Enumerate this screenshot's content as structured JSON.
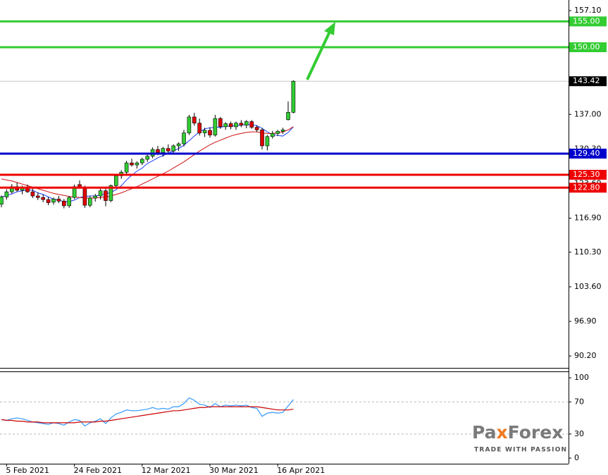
{
  "chart_data": [
    {
      "type": "candlestick",
      "categories": [
        null,
        "5 Feb 2021",
        null,
        null,
        null,
        null,
        null,
        null,
        null,
        null,
        null,
        null,
        null,
        null,
        "24 Feb 2021",
        null,
        null,
        null,
        null,
        null,
        null,
        null,
        null,
        null,
        null,
        null,
        null,
        "12 Mar 2021",
        null,
        null,
        null,
        null,
        null,
        null,
        null,
        null,
        null,
        null,
        null,
        null,
        "30 Mar 2021",
        null,
        null,
        null,
        null,
        null,
        null,
        null,
        null,
        null,
        null,
        null,
        null,
        "16 Apr 2021",
        null,
        null,
        null
      ],
      "open": [
        119.6,
        121.0,
        122.0,
        123.0,
        122.3,
        122.8,
        122.0,
        121.2,
        120.9,
        120.5,
        120.0,
        120.6,
        120.2,
        119.3,
        120.9,
        123.4,
        122.7,
        119.4,
        120.8,
        121.2,
        122.2,
        120.3,
        123.2,
        125.1,
        125.8,
        127.6,
        127.2,
        127.6,
        128.3,
        128.9,
        130.2,
        129.6,
        130.4,
        129.9,
        130.9,
        131.3,
        133.4,
        136.5,
        135.3,
        133.4,
        133.9,
        133.0,
        136.2,
        134.6,
        135.2,
        134.6,
        135.3,
        134.9,
        135.6,
        134.5,
        134.0,
        130.9,
        132.7,
        133.3,
        133.7,
        136.0,
        137.4
      ],
      "high": [
        121.3,
        122.5,
        123.5,
        123.8,
        123.2,
        123.4,
        122.6,
        121.9,
        121.5,
        121.0,
        120.9,
        121.2,
        120.6,
        121.2,
        123.4,
        124.2,
        123.2,
        121.2,
        121.6,
        122.6,
        123.0,
        123.4,
        125.5,
        126.2,
        128.0,
        128.4,
        127.9,
        128.6,
        129.2,
        130.6,
        130.9,
        130.7,
        131.2,
        131.2,
        131.6,
        134.0,
        136.9,
        137.3,
        136.2,
        134.4,
        134.5,
        136.9,
        136.5,
        135.5,
        135.6,
        135.6,
        135.9,
        135.9,
        135.9,
        134.9,
        134.3,
        133.0,
        133.8,
        134.0,
        134.4,
        139.5,
        143.6
      ],
      "low": [
        119.0,
        120.5,
        121.6,
        122.0,
        121.5,
        121.8,
        120.8,
        120.4,
        120.0,
        119.4,
        119.5,
        119.8,
        118.8,
        118.9,
        120.6,
        122.6,
        118.9,
        119.0,
        120.1,
        120.5,
        119.2,
        120.0,
        122.8,
        124.5,
        125.4,
        126.9,
        126.5,
        127.2,
        127.8,
        128.5,
        129.1,
        128.8,
        129.5,
        129.6,
        129.9,
        130.8,
        133.0,
        134.8,
        132.9,
        132.6,
        132.5,
        132.7,
        134.2,
        134.0,
        134.1,
        134.0,
        134.5,
        134.3,
        134.2,
        133.6,
        130.2,
        130.0,
        132.3,
        132.8,
        133.2,
        135.8,
        137.2
      ],
      "close": [
        121.0,
        122.0,
        123.0,
        122.3,
        122.8,
        122.0,
        121.2,
        120.9,
        120.5,
        119.9,
        120.6,
        120.2,
        119.3,
        120.9,
        123.0,
        122.7,
        119.4,
        120.8,
        121.2,
        122.2,
        120.3,
        123.2,
        125.1,
        125.8,
        127.6,
        127.2,
        127.6,
        128.3,
        128.9,
        130.2,
        129.6,
        130.4,
        129.9,
        130.9,
        131.3,
        133.4,
        136.5,
        135.3,
        133.4,
        133.9,
        133.0,
        136.2,
        134.6,
        135.2,
        134.6,
        135.3,
        134.9,
        135.6,
        134.5,
        134.0,
        130.9,
        132.7,
        133.3,
        133.7,
        134.0,
        137.4,
        143.42
      ],
      "up_color": "#33cc33",
      "down_color": "#e00000",
      "series": [
        {
          "color": "#1f3fff",
          "values": [
            121.0,
            121.3,
            121.6,
            122.0,
            122.2,
            122.4,
            122.3,
            121.8,
            121.5,
            121.0,
            120.6,
            120.4,
            120.1,
            120.1,
            120.4,
            120.9,
            121.1,
            121.2,
            121.2,
            121.4,
            121.6,
            121.9,
            122.4,
            123.2,
            124.3,
            125.2,
            126.0,
            126.6,
            127.5,
            128.0,
            128.6,
            129.0,
            129.5,
            129.9,
            130.4,
            131.0,
            131.9,
            132.8,
            133.6,
            134.2,
            134.4,
            134.5,
            134.5,
            134.7,
            134.7,
            134.8,
            134.9,
            135.0,
            135.0,
            134.8,
            134.3,
            133.6,
            133.1,
            132.9,
            132.8,
            133.5,
            134.6
          ]
        },
        {
          "color": "#d01010",
          "values": [
            124.5,
            124.3,
            124.1,
            123.8,
            123.5,
            123.2,
            122.9,
            122.6,
            122.3,
            122.0,
            121.7,
            121.5,
            121.3,
            121.1,
            121.0,
            120.9,
            120.8,
            120.8,
            120.8,
            120.9,
            121.0,
            121.2,
            121.5,
            121.8,
            122.2,
            122.6,
            123.0,
            123.5,
            124.0,
            124.5,
            125.0,
            125.5,
            126.0,
            126.6,
            127.2,
            127.8,
            128.5,
            129.2,
            129.9,
            130.5,
            131.1,
            131.6,
            132.0,
            132.4,
            132.8,
            133.1,
            133.3,
            133.5,
            133.6,
            133.6,
            133.4,
            133.3,
            133.3,
            133.4,
            133.6,
            134.0,
            134.6
          ]
        }
      ],
      "ylim": [
        87.9,
        159.15
      ],
      "yticks": [
        {
          "value": 157.1,
          "label": "157.10"
        },
        {
          "value": 137,
          "label": "137.00"
        },
        {
          "value": 130.3,
          "label": "130.30"
        },
        {
          "value": 123.6,
          "label": "123.60"
        },
        {
          "value": 116.9,
          "label": "116.90"
        },
        {
          "value": 110.3,
          "label": "110.30"
        },
        {
          "value": 103.6,
          "label": "103.60"
        },
        {
          "value": 96.9,
          "label": "96.90"
        },
        {
          "value": 90.2,
          "label": "90.20"
        }
      ],
      "levels": [
        {
          "value": 155,
          "label": "155.00",
          "color": "#33cc33"
        },
        {
          "value": 150,
          "label": "150.00",
          "color": "#33cc33"
        },
        {
          "value": 129.4,
          "label": "129.40",
          "color": "#0000cc"
        },
        {
          "value": 125.3,
          "label": "125.30",
          "color": "#ee0000"
        },
        {
          "value": 122.8,
          "label": "122.80",
          "color": "#ee0000"
        }
      ],
      "last_price": {
        "value": 143.42,
        "label": "143.42"
      },
      "logo": [
        "Pa",
        "x",
        "Forex"
      ],
      "tagline": "TRADE WITH PASSION"
    },
    {
      "type": "line",
      "series": [
        {
          "color": "#3399ff",
          "values": [
            48,
            47,
            49,
            50,
            49,
            47,
            45,
            44,
            43,
            42,
            44,
            43,
            41,
            45,
            48,
            47,
            40,
            44,
            46,
            49,
            43,
            50,
            55,
            57,
            60,
            59,
            59,
            60,
            61,
            63,
            61,
            62,
            61,
            64,
            64,
            68,
            75,
            72,
            67,
            66,
            63,
            68,
            64,
            66,
            65,
            66,
            65,
            66,
            63,
            62,
            52,
            56,
            57,
            56,
            57,
            65,
            73
          ]
        },
        {
          "color": "#cc0000",
          "values": [
            48,
            47,
            47,
            46,
            46,
            45,
            45,
            45,
            44,
            44,
            44,
            44,
            44,
            44,
            44,
            45,
            45,
            45,
            45,
            46,
            46,
            47,
            48,
            49,
            50,
            51,
            52,
            53,
            54,
            55,
            56,
            57,
            58,
            59,
            59,
            60,
            61,
            62,
            63,
            63,
            64,
            64,
            64,
            64,
            64,
            64,
            64,
            64,
            64,
            64,
            63,
            62,
            61,
            60,
            60,
            60,
            61
          ]
        }
      ],
      "ylim": [
        -7,
        108
      ],
      "yticks": [
        0,
        30,
        70,
        100
      ],
      "grid_levels": [
        30,
        70
      ]
    }
  ]
}
